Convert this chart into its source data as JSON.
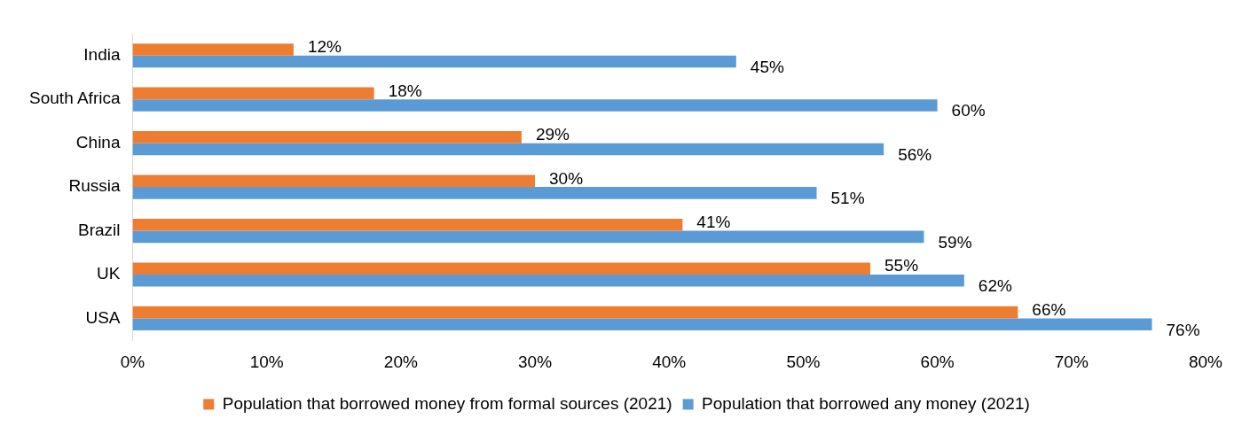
{
  "chart_data": {
    "type": "bar",
    "orientation": "horizontal",
    "categories": [
      "India",
      "South Africa",
      "China",
      "Russia",
      "Brazil",
      "UK",
      "USA"
    ],
    "series": [
      {
        "name": "Population that borrowed money from formal sources (2021)",
        "color": "#ed7d31",
        "values": [
          12,
          18,
          29,
          30,
          41,
          55,
          66
        ],
        "value_labels": [
          "12%",
          "18%",
          "29%",
          "30%",
          "41%",
          "55%",
          "66%"
        ]
      },
      {
        "name": "Population that borrowed any money (2021)",
        "color": "#5b9bd5",
        "values": [
          45,
          60,
          56,
          51,
          59,
          62,
          76
        ],
        "value_labels": [
          "45%",
          "60%",
          "56%",
          "51%",
          "59%",
          "62%",
          "76%"
        ]
      }
    ],
    "xlim": [
      0,
      80
    ],
    "xticks": [
      {
        "value": 0,
        "label": "0%"
      },
      {
        "value": 10,
        "label": "10%"
      },
      {
        "value": 20,
        "label": "20%"
      },
      {
        "value": 30,
        "label": "30%"
      },
      {
        "value": 40,
        "label": "40%"
      },
      {
        "value": 50,
        "label": "50%"
      },
      {
        "value": 60,
        "label": "60%"
      },
      {
        "value": 70,
        "label": "70%"
      },
      {
        "value": 80,
        "label": "80%"
      }
    ],
    "grid": false,
    "legend": "bottom"
  }
}
